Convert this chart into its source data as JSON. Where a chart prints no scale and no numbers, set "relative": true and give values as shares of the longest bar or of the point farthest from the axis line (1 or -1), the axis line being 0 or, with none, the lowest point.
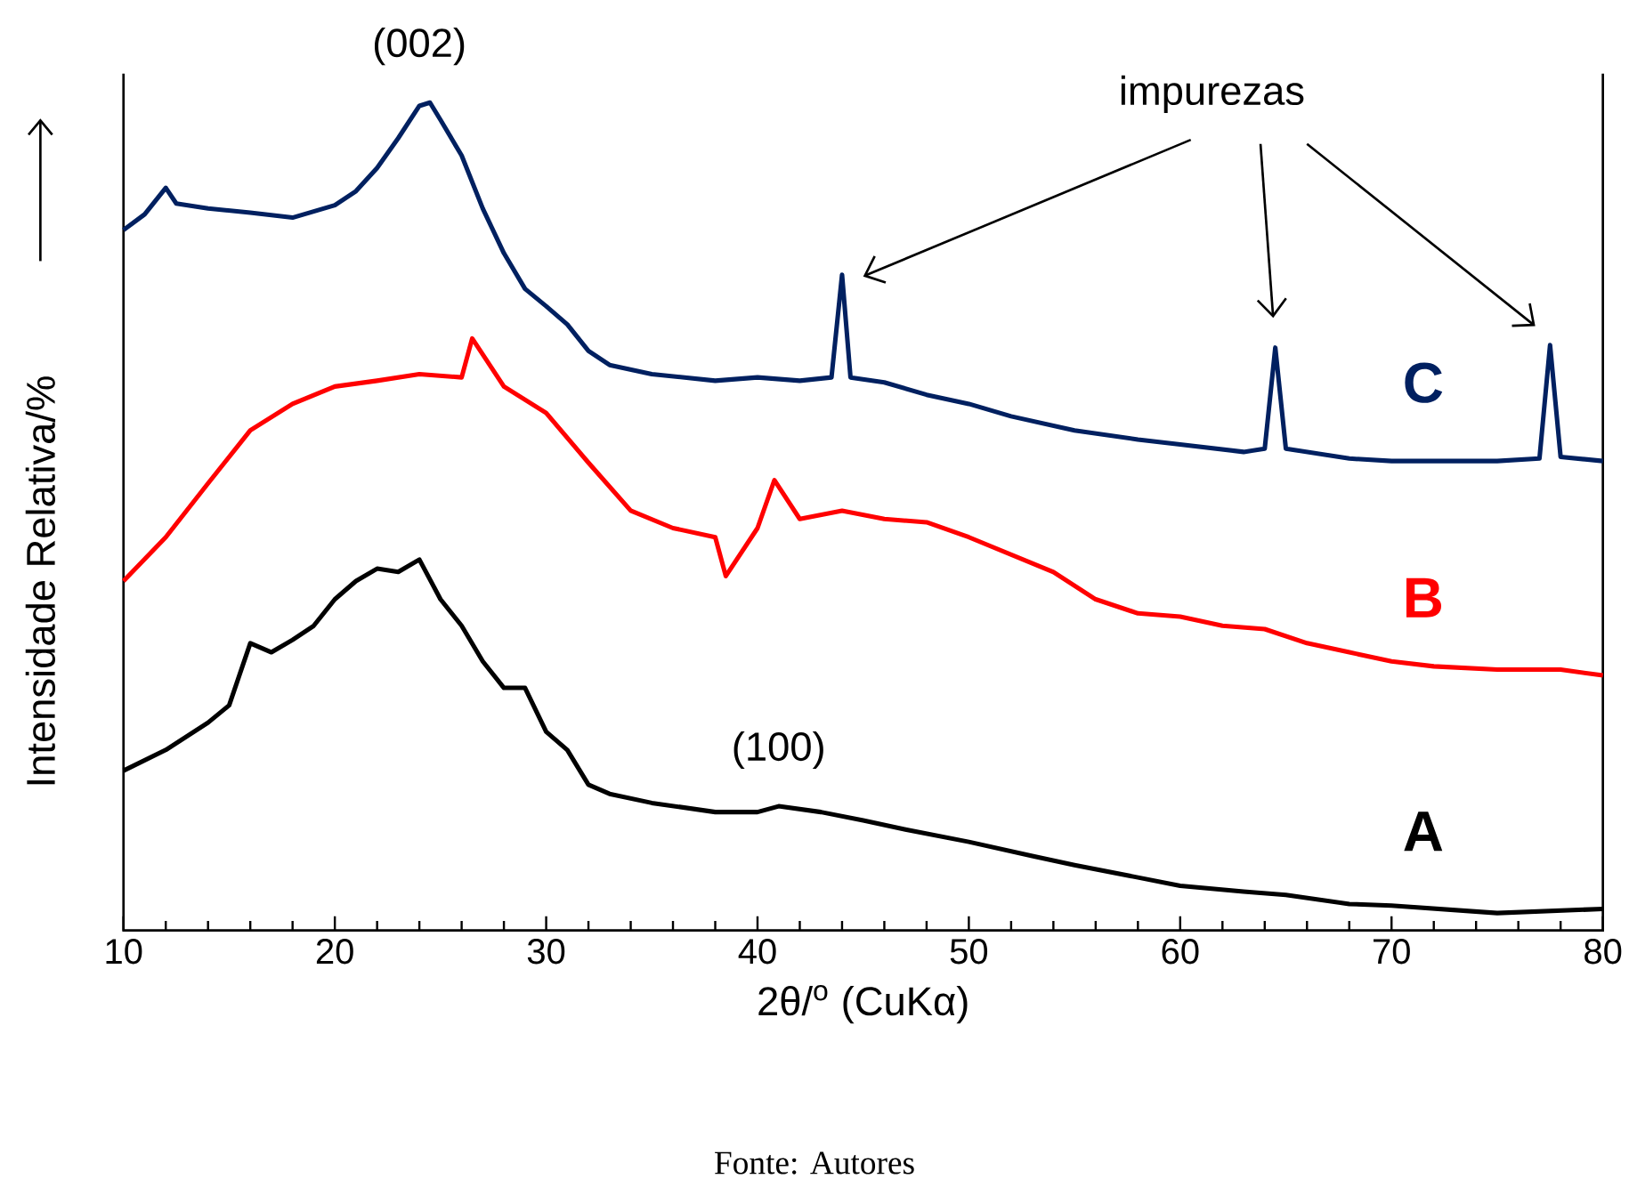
{
  "chart_data": {
    "type": "line",
    "relative": true,
    "xlabel": "2θ/$^{o}$ (CuKα)",
    "ylabel": "Intensidade Relativa/%",
    "xlim": [
      10,
      80
    ],
    "xticks": [
      10,
      20,
      30,
      40,
      50,
      60,
      70,
      80
    ],
    "marker": "none",
    "line_style": "solid",
    "legend": false,
    "grid": false,
    "tick_labels": "x",
    "series": [
      {
        "name": "A",
        "color": "#000000",
        "x": [
          10,
          12,
          14,
          15,
          16,
          17,
          18,
          19,
          20,
          21,
          22,
          23,
          24,
          25,
          26,
          27,
          28,
          29,
          30,
          31,
          32,
          33,
          35,
          38,
          40,
          41,
          43,
          45,
          47,
          50,
          53,
          55,
          58,
          60,
          63,
          65,
          68,
          70,
          75,
          80
        ],
        "values": [
          0.193,
          0.218,
          0.251,
          0.272,
          0.347,
          0.336,
          0.351,
          0.368,
          0.4,
          0.422,
          0.437,
          0.433,
          0.448,
          0.4,
          0.368,
          0.325,
          0.293,
          0.293,
          0.24,
          0.218,
          0.176,
          0.165,
          0.154,
          0.143,
          0.143,
          0.15,
          0.143,
          0.133,
          0.122,
          0.107,
          0.09,
          0.079,
          0.064,
          0.054,
          0.047,
          0.043,
          0.032,
          0.03,
          0.021,
          0.026
        ]
      },
      {
        "name": "B",
        "color": "#ff0000",
        "x": [
          10,
          12,
          14,
          16,
          18,
          20,
          22,
          24,
          26,
          26.5,
          28,
          30,
          32,
          34,
          36,
          38,
          38.5,
          40,
          40.8,
          42,
          44,
          46,
          48,
          50,
          52,
          54,
          56,
          58,
          60,
          62,
          64,
          66,
          68,
          70,
          72,
          75,
          78,
          80
        ],
        "values": [
          0.422,
          0.475,
          0.54,
          0.604,
          0.636,
          0.657,
          0.664,
          0.672,
          0.668,
          0.715,
          0.657,
          0.625,
          0.565,
          0.507,
          0.486,
          0.475,
          0.428,
          0.486,
          0.544,
          0.497,
          0.507,
          0.497,
          0.493,
          0.475,
          0.454,
          0.433,
          0.4,
          0.383,
          0.379,
          0.368,
          0.364,
          0.347,
          0.336,
          0.325,
          0.319,
          0.315,
          0.315,
          0.308
        ]
      },
      {
        "name": "C",
        "color": "#002060",
        "x": [
          10,
          11,
          12,
          12.5,
          14,
          16,
          18,
          20,
          21,
          22,
          23,
          24,
          24.5,
          25,
          26,
          27,
          28,
          29,
          30,
          31,
          32,
          33,
          35,
          38,
          40,
          42,
          43.5,
          44,
          44.4,
          46,
          48,
          50,
          52,
          55,
          58,
          60,
          63,
          64,
          64.5,
          65,
          68,
          70,
          72,
          75,
          77,
          77.5,
          78,
          80
        ],
        "values": [
          0.846,
          0.865,
          0.897,
          0.878,
          0.872,
          0.867,
          0.861,
          0.876,
          0.893,
          0.921,
          0.957,
          0.996,
          1.0,
          0.979,
          0.936,
          0.872,
          0.818,
          0.775,
          0.754,
          0.732,
          0.7,
          0.683,
          0.672,
          0.664,
          0.668,
          0.664,
          0.668,
          0.792,
          0.668,
          0.662,
          0.647,
          0.636,
          0.621,
          0.604,
          0.593,
          0.587,
          0.578,
          0.582,
          0.704,
          0.582,
          0.57,
          0.567,
          0.567,
          0.567,
          0.57,
          0.707,
          0.572,
          0.567
        ]
      }
    ],
    "annotations": [
      {
        "text": "(002)",
        "x": 24,
        "y": 1.0
      },
      {
        "text": "(100)",
        "x": 41,
        "y": 0.15
      },
      "impurezas",
      "Fonte: Autores"
    ]
  }
}
